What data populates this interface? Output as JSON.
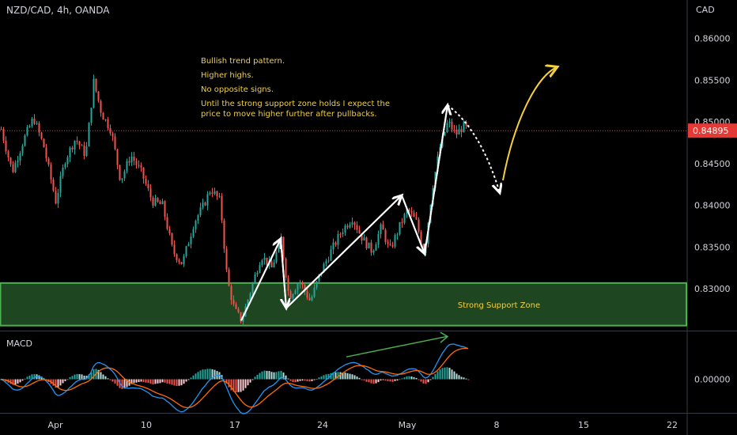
{
  "header": {
    "symbol": "NZD/CAD, 4h, OANDA",
    "currency": "CAD"
  },
  "macd_pane": {
    "label": "MACD"
  },
  "annotation": {
    "lines": [
      "Bullish trend pattern.",
      "Higher highs.",
      "No opposite signs.",
      "Until the strong support zone holds I expect the price to move higher further after pullbacks."
    ],
    "zone_label": "Strong Support Zone",
    "zone_range": [
      0.8256,
      0.8307
    ]
  },
  "colors": {
    "up": "#26a69a",
    "down": "#ef5350",
    "zone": "#4caf50",
    "zone_fill": "#1e4620",
    "note": "#f4d03f",
    "current": "#e53935",
    "macd_line": "#2196f3",
    "signal_line": "#ff6d00",
    "divergence": "#4caf50"
  },
  "chart_data": [
    {
      "type": "candlestick",
      "title": "NZD/CAD, 4h, OANDA",
      "y_ticks": [
        0.83,
        0.835,
        0.84,
        0.845,
        0.85,
        0.855,
        0.86
      ],
      "y_tick_labels": [
        "0.83000",
        "0.83500",
        "0.84000",
        "0.84500",
        "0.85000",
        "0.85500",
        "0.86000"
      ],
      "ylim": [
        0.825,
        0.8646
      ],
      "x_ticks": [
        "Apr",
        "10",
        "17",
        "24",
        "May",
        "8",
        "15",
        "22"
      ],
      "current_price": 0.84895,
      "current_price_label": "0.84895",
      "price_path": [
        [
          0,
          0.8495
        ],
        [
          15,
          0.844
        ],
        [
          30,
          0.848
        ],
        [
          42,
          0.8505
        ],
        [
          55,
          0.847
        ],
        [
          70,
          0.8405
        ],
        [
          82,
          0.8455
        ],
        [
          95,
          0.848
        ],
        [
          108,
          0.846
        ],
        [
          118,
          0.8548
        ],
        [
          128,
          0.851
        ],
        [
          140,
          0.849
        ],
        [
          152,
          0.843
        ],
        [
          165,
          0.846
        ],
        [
          178,
          0.844
        ],
        [
          192,
          0.8405
        ],
        [
          205,
          0.84
        ],
        [
          218,
          0.8345
        ],
        [
          230,
          0.833
        ],
        [
          245,
          0.838
        ],
        [
          257,
          0.84
        ],
        [
          266,
          0.842
        ],
        [
          278,
          0.8405
        ],
        [
          287,
          0.831
        ],
        [
          296,
          0.8275
        ],
        [
          305,
          0.8262
        ],
        [
          317,
          0.83
        ],
        [
          330,
          0.834
        ],
        [
          343,
          0.8325
        ],
        [
          355,
          0.836
        ],
        [
          365,
          0.829
        ],
        [
          378,
          0.831
        ],
        [
          392,
          0.8285
        ],
        [
          405,
          0.832
        ],
        [
          418,
          0.8345
        ],
        [
          432,
          0.837
        ],
        [
          445,
          0.8385
        ],
        [
          458,
          0.836
        ],
        [
          470,
          0.8345
        ],
        [
          482,
          0.8375
        ],
        [
          492,
          0.8345
        ],
        [
          505,
          0.8375
        ],
        [
          515,
          0.8395
        ],
        [
          526,
          0.838
        ],
        [
          536,
          0.8342
        ],
        [
          546,
          0.842
        ],
        [
          556,
          0.847
        ],
        [
          566,
          0.85
        ],
        [
          576,
          0.8485
        ],
        [
          586,
          0.8495
        ],
        [
          592,
          0.849
        ]
      ],
      "drawings": {
        "white_zigzag": [
          [
            305,
            0.8262
          ],
          [
            355,
            0.836
          ],
          [
            362,
            0.8277
          ],
          [
            508,
            0.8412
          ],
          [
            537,
            0.8342
          ],
          [
            566,
            0.852
          ]
        ],
        "projection_dashed": [
          [
            566,
            0.852
          ],
          [
            608,
            0.849
          ],
          [
            632,
            0.8415
          ]
        ],
        "projection_arrow": [
          [
            636,
            0.843
          ],
          [
            650,
            0.85
          ],
          [
            678,
            0.8555
          ],
          [
            705,
            0.8566
          ]
        ]
      }
    },
    {
      "type": "macd",
      "title": "MACD",
      "y_ticks": [
        0.0
      ],
      "y_tick_labels": [
        "0.00000"
      ],
      "ylim": [
        -0.0033,
        0.0047
      ]
    }
  ]
}
